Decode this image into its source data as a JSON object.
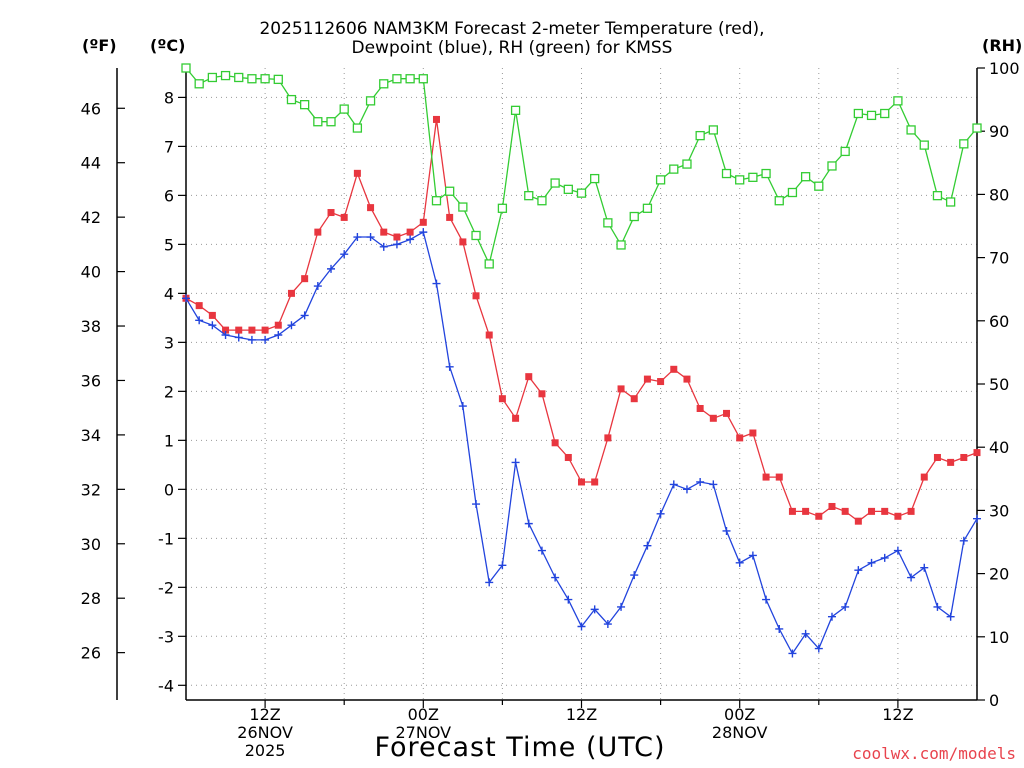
{
  "title": {
    "line1": "2025112606 NAM3KM Forecast 2-meter Temperature (red),",
    "line2": "Dewpoint (blue), RH (green) for KMSS"
  },
  "units": {
    "fahrenheit": "(ºF)",
    "celsius": "(ºC)",
    "rh": "(RH)"
  },
  "x_ticks": [
    {
      "hour": 12,
      "lines": [
        "12Z",
        "26NOV",
        "2025"
      ]
    },
    {
      "hour": 24,
      "lines": [
        "00Z",
        "27NOV"
      ]
    },
    {
      "hour": 36,
      "lines": [
        "12Z"
      ]
    },
    {
      "hour": 48,
      "lines": [
        "00Z",
        "28NOV"
      ]
    },
    {
      "hour": 60,
      "lines": [
        "12Z"
      ]
    }
  ],
  "xlabel": "Forecast Time (UTC)",
  "credit": "coolwx.com/models",
  "colors": {
    "temperature": "#e8363f",
    "dewpoint": "#2244dd",
    "rh": "#33cc33",
    "grid": "#999999"
  },
  "chart_data": {
    "type": "line",
    "title": "2025112606 NAM3KM Forecast 2-meter Temperature (red), Dewpoint (blue), RH (green) for KMSS",
    "xlabel": "Forecast Time (UTC)",
    "x_unit": "forecast hour from 2025-11-26 06Z",
    "xlim": [
      6,
      66
    ],
    "x": [
      6,
      7,
      8,
      9,
      10,
      11,
      12,
      13,
      14,
      15,
      16,
      17,
      18,
      19,
      20,
      21,
      22,
      23,
      24,
      25,
      26,
      27,
      28,
      29,
      30,
      31,
      32,
      33,
      34,
      35,
      36,
      37,
      38,
      39,
      40,
      41,
      42,
      43,
      44,
      45,
      46,
      47,
      48,
      49,
      50,
      51,
      52,
      53,
      54,
      55,
      56,
      57,
      58,
      59,
      60,
      61,
      62,
      63,
      64,
      65,
      66
    ],
    "y_left_celsius": {
      "label": "(ºC)",
      "lim": [
        -4.3,
        8.6
      ],
      "ticks": [
        -4,
        -3,
        -2,
        -1,
        0,
        1,
        2,
        3,
        4,
        5,
        6,
        7,
        8
      ]
    },
    "y_left_fahrenheit": {
      "label": "(ºF)",
      "ticks": [
        26,
        28,
        30,
        32,
        34,
        36,
        38,
        40,
        42,
        44,
        46
      ]
    },
    "y_right_rh": {
      "label": "(RH)",
      "lim": [
        0,
        100
      ],
      "ticks": [
        0,
        10,
        20,
        30,
        40,
        50,
        60,
        70,
        80,
        90,
        100
      ]
    },
    "series": [
      {
        "name": "Temperature",
        "axis": "celsius",
        "marker": "filled-square",
        "values": [
          3.9,
          3.75,
          3.55,
          3.25,
          3.25,
          3.25,
          3.25,
          3.35,
          4.0,
          4.3,
          5.25,
          5.65,
          5.55,
          6.45,
          5.75,
          5.25,
          5.15,
          5.25,
          5.45,
          7.55,
          5.55,
          5.05,
          3.95,
          3.15,
          1.85,
          1.45,
          2.3,
          1.95,
          0.95,
          0.65,
          0.15,
          0.15,
          1.05,
          2.05,
          1.85,
          2.25,
          2.2,
          2.45,
          2.25,
          1.65,
          1.45,
          1.55,
          1.05,
          1.15,
          0.25,
          0.25,
          -0.45,
          -0.45,
          -0.55,
          -0.35,
          -0.45,
          -0.65,
          -0.45,
          -0.45,
          -0.55,
          -0.45,
          0.25,
          0.65,
          0.55,
          0.65,
          0.75
        ]
      },
      {
        "name": "Dewpoint",
        "axis": "celsius",
        "marker": "plus",
        "values": [
          3.9,
          3.45,
          3.35,
          3.15,
          3.1,
          3.05,
          3.05,
          3.15,
          3.35,
          3.55,
          4.15,
          4.5,
          4.8,
          5.15,
          5.15,
          4.95,
          5.0,
          5.1,
          5.25,
          4.2,
          2.5,
          1.7,
          -0.3,
          -1.9,
          -1.55,
          0.55,
          -0.7,
          -1.25,
          -1.8,
          -2.25,
          -2.8,
          -2.45,
          -2.75,
          -2.4,
          -1.75,
          -1.15,
          -0.5,
          0.1,
          0.0,
          0.15,
          0.1,
          -0.85,
          -1.5,
          -1.35,
          -2.25,
          -2.85,
          -3.35,
          -2.95,
          -3.25,
          -2.6,
          -2.4,
          -1.65,
          -1.5,
          -1.4,
          -1.25,
          -1.8,
          -1.6,
          -2.4,
          -2.6,
          -1.05,
          -0.6
        ]
      },
      {
        "name": "Relative Humidity",
        "axis": "rh",
        "marker": "open-square",
        "values": [
          100,
          97.5,
          98.5,
          98.8,
          98.5,
          98.3,
          98.3,
          98.2,
          95,
          94.2,
          91.5,
          91.5,
          93.5,
          90.5,
          94.8,
          97.5,
          98.3,
          98.3,
          98.3,
          79,
          80.5,
          78,
          73.5,
          69,
          77.8,
          93.3,
          79.8,
          79,
          81.8,
          80.8,
          80.2,
          82.5,
          75.5,
          72,
          76.5,
          77.8,
          82.3,
          84,
          84.8,
          89.3,
          90.2,
          83.3,
          82.3,
          82.7,
          83.3,
          79,
          80.3,
          82.8,
          81.3,
          84.5,
          86.8,
          92.8,
          92.5,
          92.8,
          94.8,
          90.2,
          87.8,
          79.8,
          78.8,
          88,
          90.5
        ]
      }
    ]
  }
}
